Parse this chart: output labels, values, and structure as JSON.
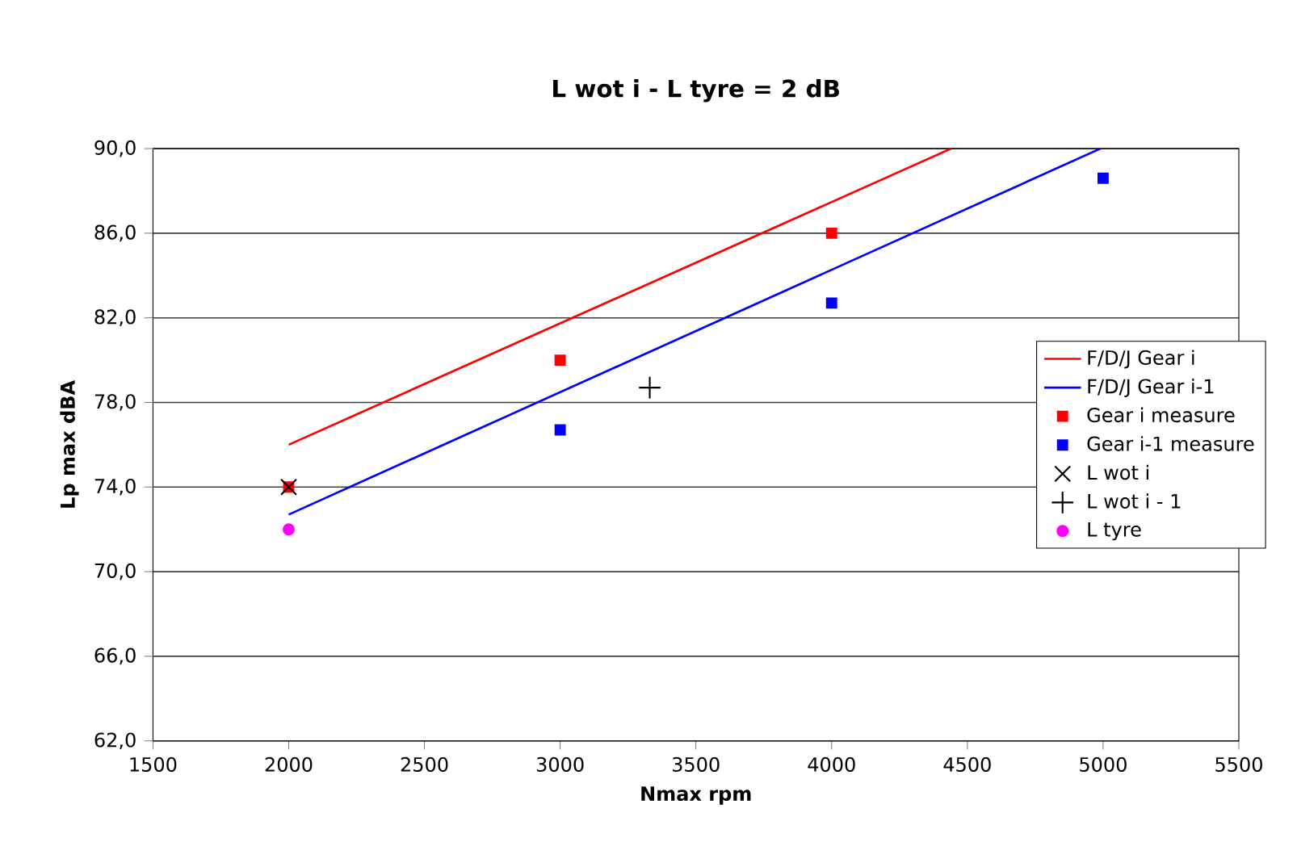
{
  "chart_data": {
    "type": "scatter",
    "title": "L wot i - L tyre = 2 dB",
    "xlabel": "Nmax rpm",
    "ylabel": "Lp max dBA",
    "xlim": [
      1500,
      5500
    ],
    "xticks": [
      1500,
      2000,
      2500,
      3000,
      3500,
      4000,
      4500,
      5000,
      5500
    ],
    "ylim": [
      62,
      90
    ],
    "yticks": [
      {
        "value": 62,
        "label": "62,0"
      },
      {
        "value": 66,
        "label": "66,0"
      },
      {
        "value": 70,
        "label": "70,0"
      },
      {
        "value": 74,
        "label": "74,0"
      },
      {
        "value": 78,
        "label": "78,0"
      },
      {
        "value": 82,
        "label": "82,0"
      },
      {
        "value": 86,
        "label": "86,0"
      },
      {
        "value": 90,
        "label": "90,0"
      }
    ],
    "grid": "y",
    "legend": "right",
    "series": [
      {
        "name": "F/D/J Gear i",
        "type": "line",
        "color": "#ff0000",
        "marker": "none",
        "line_style": "solid",
        "x": [
          2000,
          4440
        ],
        "values": [
          76.0,
          90.0
        ]
      },
      {
        "name": "F/D/J Gear i-1",
        "type": "line",
        "color": "#0000ff",
        "marker": "none",
        "line_style": "solid",
        "x": [
          2000,
          4990
        ],
        "values": [
          72.7,
          90.0
        ]
      },
      {
        "name": "Gear i measure",
        "color": "#ff0000",
        "marker": "square",
        "x": [
          2000,
          3000,
          4000
        ],
        "values": [
          74.0,
          80.0,
          86.0
        ]
      },
      {
        "name": "Gear i-1 measure",
        "color": "#0000ff",
        "marker": "square",
        "x": [
          3000,
          4000,
          5000
        ],
        "values": [
          76.7,
          82.7,
          88.6
        ]
      },
      {
        "name": "L wot i",
        "color": "#000000",
        "marker": "x",
        "x": [
          2000
        ],
        "values": [
          74.0
        ]
      },
      {
        "name": "L wot i - 1",
        "color": "#000000",
        "marker": "cross",
        "x": [
          3330
        ],
        "values": [
          78.7
        ]
      },
      {
        "name": "L tyre",
        "color": "#ff00ff",
        "marker": "circle",
        "x": [
          2000
        ],
        "values": [
          72.0
        ]
      }
    ]
  }
}
